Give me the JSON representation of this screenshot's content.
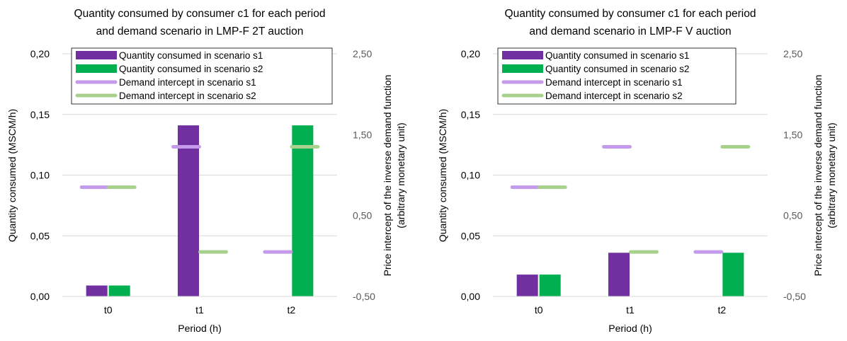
{
  "colors": {
    "s1_bar": "#7030A0",
    "s2_bar": "#00B050",
    "s1_intercept": "#C39BEA",
    "s2_intercept": "#A9D18E",
    "grid": "#D9D9D9"
  },
  "chart_data": [
    {
      "type": "bar",
      "title_lines": [
        "Quantity consumed by consumer c1 for each period",
        "and demand scenario in LMP-F 2T auction"
      ],
      "xlabel": "Period (h)",
      "ylabel": "Quantity consumed (MSCM/h)",
      "y2label_lines": [
        "Price intercept of the inverse demand function",
        "(arbitrary monetary unit)"
      ],
      "categories": [
        "t0",
        "t1",
        "t2"
      ],
      "ylim": [
        0,
        0.2
      ],
      "yticks": [
        "0,00",
        "0,05",
        "0,10",
        "0,15",
        "0,20"
      ],
      "y2lim": [
        -0.5,
        2.5
      ],
      "y2ticks": [
        "-0,50",
        "0,50",
        "1,50",
        "2,50"
      ],
      "grid": true,
      "legend_position": "top",
      "series": [
        {
          "name": "Quantity consumed in scenario s1",
          "kind": "bar",
          "axis": "left",
          "values": [
            0.009,
            0.141,
            0.0
          ]
        },
        {
          "name": "Quantity consumed in scenario s2",
          "kind": "bar",
          "axis": "left",
          "values": [
            0.009,
            0.0,
            0.141
          ]
        },
        {
          "name": "Demand intercept in scenario s1",
          "kind": "marker",
          "axis": "right",
          "values": [
            0.85,
            1.35,
            0.05
          ]
        },
        {
          "name": "Demand intercept in scenario s2",
          "kind": "marker",
          "axis": "right",
          "values": [
            0.85,
            0.05,
            1.35
          ]
        }
      ]
    },
    {
      "type": "bar",
      "title_lines": [
        "Quantity consumed by consumer c1 for each period",
        "and demand scenario in LMP-F V auction"
      ],
      "xlabel": "Period (h)",
      "ylabel": "Quantity consumed (MSCM/h)",
      "y2label_lines": [
        "Price intercept of the inverse demand function",
        "(arbitrary monetary unit)"
      ],
      "categories": [
        "t0",
        "t1",
        "t2"
      ],
      "ylim": [
        0,
        0.2
      ],
      "yticks": [
        "0,00",
        "0,05",
        "0,10",
        "0,15",
        "0,20"
      ],
      "y2lim": [
        -0.5,
        2.5
      ],
      "y2ticks": [
        "-0,50",
        "0,50",
        "1,50",
        "2,50"
      ],
      "grid": true,
      "legend_position": "top",
      "series": [
        {
          "name": "Quantity consumed in scenario s1",
          "kind": "bar",
          "axis": "left",
          "values": [
            0.018,
            0.036,
            0.0
          ]
        },
        {
          "name": "Quantity consumed in scenario s2",
          "kind": "bar",
          "axis": "left",
          "values": [
            0.018,
            0.0,
            0.036
          ]
        },
        {
          "name": "Demand intercept in scenario s1",
          "kind": "marker",
          "axis": "right",
          "values": [
            0.85,
            1.35,
            0.05
          ]
        },
        {
          "name": "Demand intercept in scenario s2",
          "kind": "marker",
          "axis": "right",
          "values": [
            0.85,
            0.05,
            1.35
          ]
        }
      ]
    }
  ]
}
